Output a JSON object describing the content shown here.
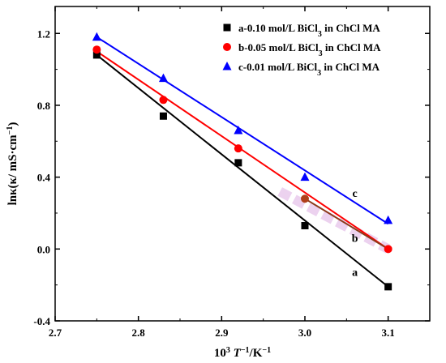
{
  "chart_data": {
    "type": "scatter",
    "title": "",
    "xlabel_parts": [
      "10",
      "3",
      " ",
      "T",
      "−1",
      "/K",
      "−1"
    ],
    "ylabel_parts": [
      "lnκ(κ/ mS·cm",
      "−1",
      ")"
    ],
    "xlim": [
      2.7,
      3.15
    ],
    "ylim": [
      -0.4,
      1.35
    ],
    "x_ticks": [
      2.7,
      2.8,
      2.9,
      3.0,
      3.1
    ],
    "x_tick_labels": [
      "2.7",
      "2.8",
      "2.9",
      "3.0",
      "3.1"
    ],
    "y_ticks": [
      -0.4,
      0.0,
      0.4,
      0.8,
      1.2
    ],
    "y_tick_labels": [
      "-0.4",
      "0.0",
      "0.4",
      "0.8",
      "1.2"
    ],
    "legend_position": "top-right",
    "series": [
      {
        "name_parts": [
          "a-0.10 mol/L BiCl",
          "3",
          " in ChCl MA"
        ],
        "line_label": "a",
        "marker": "square",
        "color": "#000000",
        "x": [
          2.75,
          2.83,
          2.92,
          3.0,
          3.1
        ],
        "y": [
          1.08,
          0.74,
          0.48,
          0.13,
          -0.21
        ],
        "fit_x": [
          2.75,
          3.1
        ],
        "fit_y": [
          1.08,
          -0.21
        ]
      },
      {
        "name_parts": [
          "b-0.05 mol/L BiCl",
          "3",
          " in ChCl MA"
        ],
        "line_label": "b",
        "marker": "circle",
        "color": "#ff0000",
        "x": [
          2.75,
          2.83,
          2.92,
          3.0,
          3.1
        ],
        "y": [
          1.11,
          0.83,
          0.56,
          0.28,
          0.0
        ],
        "fit_x": [
          2.75,
          3.1
        ],
        "fit_y": [
          1.1,
          0.0
        ]
      },
      {
        "name_parts": [
          "c-0.01 mol/L BiCl",
          "3",
          " in ChCl MA"
        ],
        "line_label": "c",
        "marker": "triangle",
        "color": "#0000ff",
        "x": [
          2.75,
          2.83,
          2.92,
          3.0,
          3.1
        ],
        "y": [
          1.18,
          0.95,
          0.66,
          0.4,
          0.16
        ],
        "fit_x": [
          2.75,
          3.1
        ],
        "fit_y": [
          1.18,
          0.14
        ]
      }
    ]
  }
}
